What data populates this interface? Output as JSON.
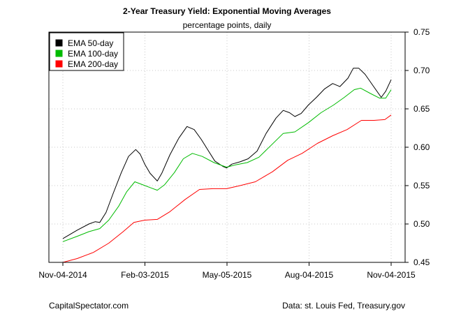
{
  "chart_data": {
    "type": "line",
    "title": "2-Year Treasury Yield: Exponential Moving Averages",
    "subtitle": "percentage points, daily",
    "xlabel": "",
    "ylabel": "",
    "x_range": [
      "2014-11-04",
      "2015-11-04"
    ],
    "x_ticks": [
      "Nov-04-2014",
      "Feb-03-2015",
      "May-05-2015",
      "Aug-04-2015",
      "Nov-04-2015"
    ],
    "ylim": [
      0.45,
      0.75
    ],
    "y_ticks": [
      "0.45",
      "0.50",
      "0.55",
      "0.60",
      "0.65",
      "0.70",
      "0.75"
    ],
    "y_axis_side": "right",
    "grid": true,
    "legend_position": "top-left",
    "series": [
      {
        "name": "EMA 50-day",
        "color": "#000000",
        "points": [
          [
            "2014-11-04",
            0.481
          ],
          [
            "2014-11-20",
            0.492
          ],
          [
            "2014-12-03",
            0.5
          ],
          [
            "2014-12-10",
            0.503
          ],
          [
            "2014-12-15",
            0.502
          ],
          [
            "2014-12-22",
            0.515
          ],
          [
            "2014-12-30",
            0.54
          ],
          [
            "2015-01-08",
            0.567
          ],
          [
            "2015-01-16",
            0.588
          ],
          [
            "2015-01-24",
            0.597
          ],
          [
            "2015-01-29",
            0.591
          ],
          [
            "2015-02-03",
            0.578
          ],
          [
            "2015-02-09",
            0.566
          ],
          [
            "2015-02-17",
            0.556
          ],
          [
            "2015-02-22",
            0.566
          ],
          [
            "2015-03-03",
            0.59
          ],
          [
            "2015-03-13",
            0.612
          ],
          [
            "2015-03-22",
            0.627
          ],
          [
            "2015-03-30",
            0.623
          ],
          [
            "2015-04-07",
            0.61
          ],
          [
            "2015-04-15",
            0.595
          ],
          [
            "2015-04-22",
            0.582
          ],
          [
            "2015-05-01",
            0.575
          ],
          [
            "2015-05-05",
            0.573
          ],
          [
            "2015-05-11",
            0.578
          ],
          [
            "2015-05-20",
            0.581
          ],
          [
            "2015-05-29",
            0.585
          ],
          [
            "2015-06-08",
            0.595
          ],
          [
            "2015-06-18",
            0.618
          ],
          [
            "2015-06-29",
            0.638
          ],
          [
            "2015-07-07",
            0.648
          ],
          [
            "2015-07-14",
            0.645
          ],
          [
            "2015-07-20",
            0.64
          ],
          [
            "2015-07-27",
            0.644
          ],
          [
            "2015-08-04",
            0.655
          ],
          [
            "2015-08-13",
            0.665
          ],
          [
            "2015-08-22",
            0.676
          ],
          [
            "2015-08-31",
            0.683
          ],
          [
            "2015-09-08",
            0.679
          ],
          [
            "2015-09-17",
            0.69
          ],
          [
            "2015-09-23",
            0.703
          ],
          [
            "2015-09-29",
            0.703
          ],
          [
            "2015-10-06",
            0.695
          ],
          [
            "2015-10-15",
            0.68
          ],
          [
            "2015-10-24",
            0.665
          ],
          [
            "2015-10-29",
            0.673
          ],
          [
            "2015-11-04",
            0.688
          ]
        ]
      },
      {
        "name": "EMA 100-day",
        "color": "#00bb00",
        "points": [
          [
            "2014-11-04",
            0.477
          ],
          [
            "2014-11-20",
            0.484
          ],
          [
            "2014-12-03",
            0.49
          ],
          [
            "2014-12-15",
            0.494
          ],
          [
            "2014-12-25",
            0.505
          ],
          [
            "2015-01-05",
            0.523
          ],
          [
            "2015-01-14",
            0.542
          ],
          [
            "2015-01-23",
            0.555
          ],
          [
            "2015-02-01",
            0.551
          ],
          [
            "2015-02-10",
            0.547
          ],
          [
            "2015-02-17",
            0.544
          ],
          [
            "2015-02-25",
            0.551
          ],
          [
            "2015-03-08",
            0.567
          ],
          [
            "2015-03-18",
            0.585
          ],
          [
            "2015-03-28",
            0.592
          ],
          [
            "2015-04-08",
            0.588
          ],
          [
            "2015-04-21",
            0.58
          ],
          [
            "2015-05-05",
            0.574
          ],
          [
            "2015-05-15",
            0.577
          ],
          [
            "2015-05-28",
            0.58
          ],
          [
            "2015-06-10",
            0.587
          ],
          [
            "2015-06-24",
            0.603
          ],
          [
            "2015-07-07",
            0.618
          ],
          [
            "2015-07-20",
            0.62
          ],
          [
            "2015-08-04",
            0.632
          ],
          [
            "2015-08-18",
            0.645
          ],
          [
            "2015-09-01",
            0.655
          ],
          [
            "2015-09-13",
            0.665
          ],
          [
            "2015-09-24",
            0.675
          ],
          [
            "2015-10-01",
            0.677
          ],
          [
            "2015-10-12",
            0.67
          ],
          [
            "2015-10-22",
            0.664
          ],
          [
            "2015-10-29",
            0.664
          ],
          [
            "2015-11-04",
            0.675
          ]
        ]
      },
      {
        "name": "EMA 200-day",
        "color": "#ff0000",
        "points": [
          [
            "2014-11-04",
            0.45
          ],
          [
            "2014-11-20",
            0.455
          ],
          [
            "2014-12-08",
            0.463
          ],
          [
            "2014-12-25",
            0.475
          ],
          [
            "2015-01-10",
            0.49
          ],
          [
            "2015-01-22",
            0.502
          ],
          [
            "2015-02-03",
            0.505
          ],
          [
            "2015-02-17",
            0.506
          ],
          [
            "2015-03-03",
            0.516
          ],
          [
            "2015-03-20",
            0.532
          ],
          [
            "2015-04-05",
            0.545
          ],
          [
            "2015-04-20",
            0.546
          ],
          [
            "2015-05-05",
            0.546
          ],
          [
            "2015-05-20",
            0.55
          ],
          [
            "2015-06-06",
            0.555
          ],
          [
            "2015-06-25",
            0.568
          ],
          [
            "2015-07-12",
            0.583
          ],
          [
            "2015-07-28",
            0.592
          ],
          [
            "2015-08-14",
            0.605
          ],
          [
            "2015-08-31",
            0.615
          ],
          [
            "2015-09-16",
            0.623
          ],
          [
            "2015-10-02",
            0.635
          ],
          [
            "2015-10-16",
            0.635
          ],
          [
            "2015-10-28",
            0.636
          ],
          [
            "2015-11-04",
            0.642
          ]
        ]
      }
    ]
  },
  "footer": {
    "left": "CapitalSpectator.com",
    "right": "Data: st. Louis Fed, Treasury.gov"
  }
}
